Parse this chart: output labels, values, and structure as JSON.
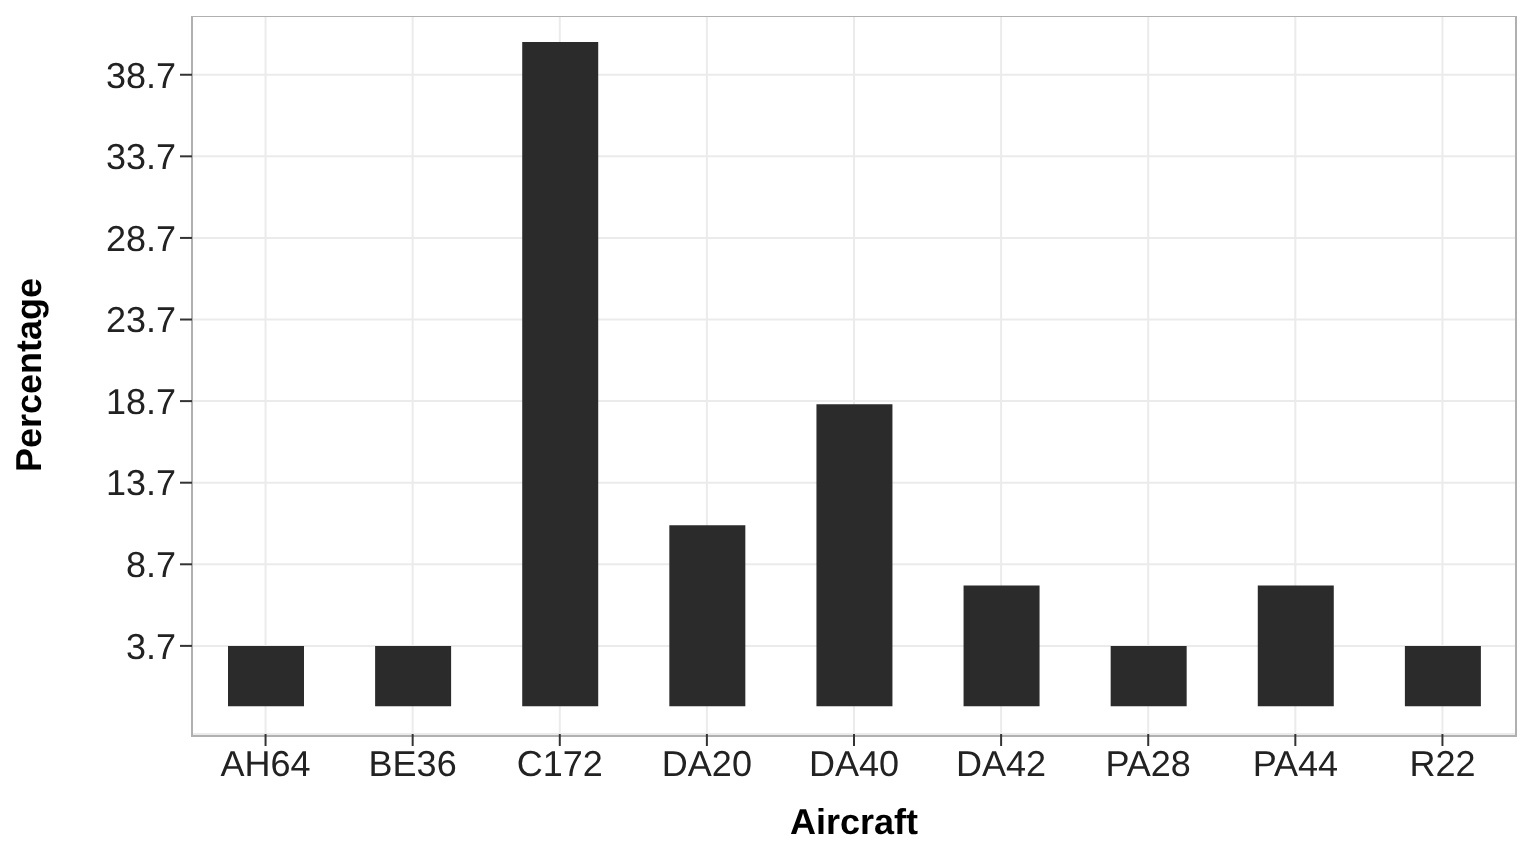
{
  "chart_data": {
    "type": "bar",
    "xlabel": "Aircraft",
    "ylabel": "Percentage",
    "categories": [
      "AH64",
      "BE36",
      "C172",
      "DA20",
      "DA40",
      "DA42",
      "PA28",
      "PA44",
      "R22"
    ],
    "values": [
      3.7,
      3.7,
      40.7,
      11.1,
      18.5,
      7.4,
      3.7,
      7.4,
      3.7
    ],
    "color": "#2b2b2b",
    "ylim": [
      -1.7,
      42.3
    ],
    "yticks": [
      3.7,
      8.7,
      13.7,
      18.7,
      23.7,
      28.7,
      33.7,
      38.7
    ],
    "grid": true
  }
}
